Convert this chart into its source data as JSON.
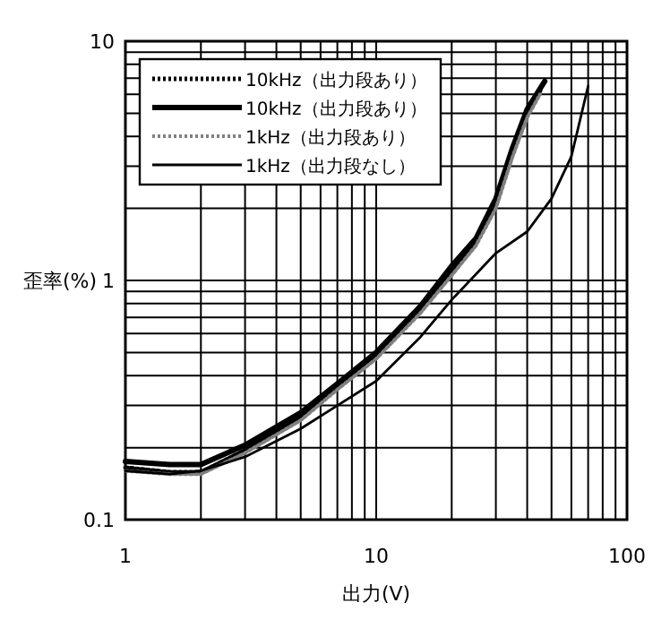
{
  "chart_data": {
    "type": "line",
    "xlabel": "出力(V)",
    "ylabel": "歪率(%)",
    "log": "xy",
    "xlim": [
      1,
      100
    ],
    "ylim": [
      0.1,
      10
    ],
    "xticks": [
      1,
      {
        "value": 2,
        "label": null
      },
      {
        "value": 3,
        "label": null
      },
      {
        "value": 4,
        "label": null
      },
      {
        "value": 5,
        "label": null
      },
      {
        "value": 6,
        "label": null
      },
      {
        "value": 7,
        "label": null
      },
      {
        "value": 8,
        "label": null
      },
      {
        "value": 9,
        "label": null
      },
      10,
      {
        "value": 20,
        "label": null
      },
      {
        "value": 30,
        "label": null
      },
      {
        "value": 40,
        "label": null
      },
      {
        "value": 50,
        "label": null
      },
      {
        "value": 60,
        "label": null
      },
      {
        "value": 70,
        "label": null
      },
      {
        "value": 80,
        "label": null
      },
      {
        "value": 90,
        "label": null
      },
      100
    ],
    "yticks": [
      0.1,
      {
        "value": 0.2,
        "label": null
      },
      {
        "value": 0.3,
        "label": null
      },
      {
        "value": 0.4,
        "label": null
      },
      {
        "value": 0.5,
        "label": null
      },
      {
        "value": 0.6,
        "label": null
      },
      {
        "value": 0.7,
        "label": null
      },
      {
        "value": 0.8,
        "label": null
      },
      {
        "value": 0.9,
        "label": null
      },
      1,
      {
        "value": 2,
        "label": null
      },
      {
        "value": 3,
        "label": null
      },
      {
        "value": 4,
        "label": null
      },
      {
        "value": 5,
        "label": null
      },
      {
        "value": 6,
        "label": null
      },
      {
        "value": 7,
        "label": null
      },
      {
        "value": 8,
        "label": null
      },
      {
        "value": 9,
        "label": null
      },
      10
    ],
    "grid": true,
    "legend": "top left",
    "marker": "none",
    "series": [
      {
        "name": "10kHz（出力段あり）",
        "color": "#000000",
        "line_style": "dotted",
        "x": [
          1,
          1.5,
          2,
          3,
          5,
          7,
          10,
          15,
          20,
          25,
          30,
          35,
          40,
          45
        ],
        "values": [
          0.165,
          0.158,
          0.158,
          0.195,
          0.27,
          0.36,
          0.48,
          0.75,
          1.1,
          1.45,
          2.1,
          3.4,
          5.0,
          6.2
        ]
      },
      {
        "name": "10kHz（出力段あり）",
        "color": "#000000",
        "line_style": "solid",
        "x": [
          1,
          1.5,
          2,
          3,
          5,
          7,
          10,
          15,
          20,
          25,
          30,
          35,
          40,
          47
        ],
        "values": [
          0.175,
          0.17,
          0.17,
          0.205,
          0.28,
          0.37,
          0.5,
          0.78,
          1.15,
          1.5,
          2.2,
          3.6,
          5.2,
          6.8
        ]
      },
      {
        "name": "1kHz（出力段あり）",
        "color": "#808080",
        "line_style": "dotted",
        "x": [
          1,
          1.5,
          2,
          3,
          5,
          7,
          10,
          15,
          20,
          25,
          30,
          35,
          40,
          45
        ],
        "values": [
          0.16,
          0.155,
          0.155,
          0.19,
          0.26,
          0.35,
          0.47,
          0.73,
          1.05,
          1.4,
          2.0,
          3.3,
          4.8,
          6.0
        ]
      },
      {
        "name": "1kHz（出力段なし）",
        "color": "#000000",
        "line_style": "solid",
        "x": [
          1,
          1.5,
          2,
          3,
          5,
          7,
          10,
          15,
          20,
          30,
          40,
          50,
          60,
          70
        ],
        "values": [
          0.16,
          0.155,
          0.16,
          0.183,
          0.24,
          0.3,
          0.38,
          0.58,
          0.83,
          1.3,
          1.6,
          2.2,
          3.3,
          6.5
        ]
      }
    ]
  }
}
